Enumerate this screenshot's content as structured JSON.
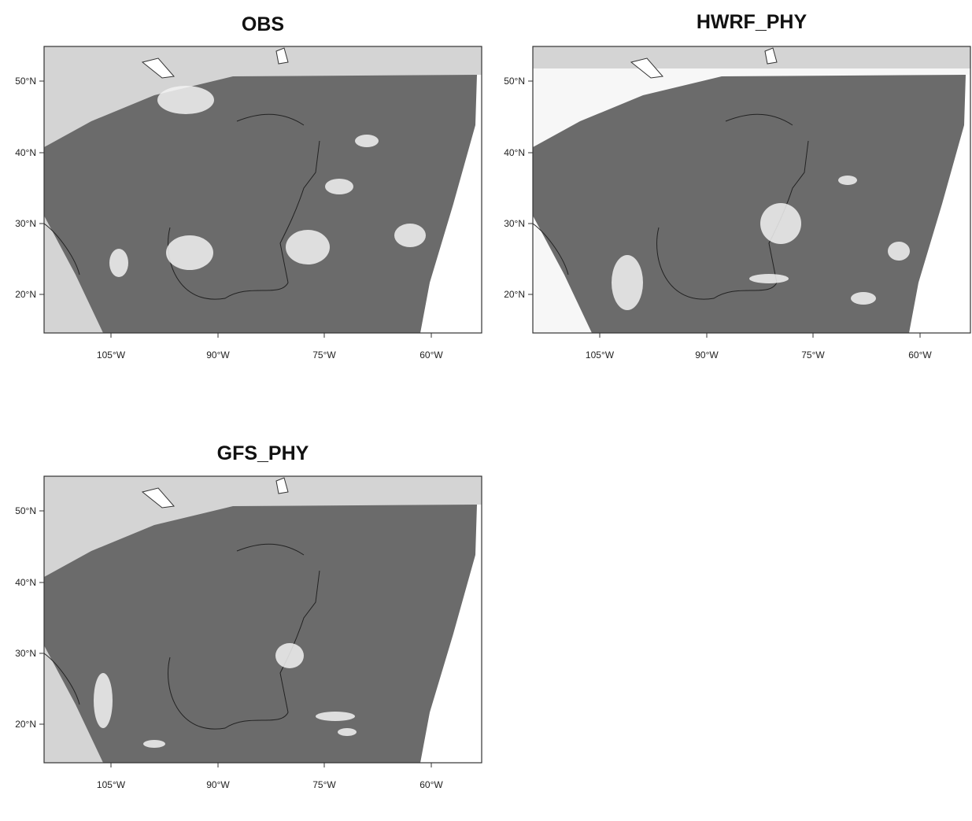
{
  "panels": [
    {
      "title": "OBS",
      "x_labels": [
        "105°W",
        "90°W",
        "75°W",
        "60°W"
      ],
      "y_labels": [
        "50°N",
        "40°N",
        "30°N",
        "20°N"
      ]
    },
    {
      "title": "HWRF_PHY",
      "x_labels": [
        "105°W",
        "90°W",
        "75°W",
        "60°W"
      ],
      "y_labels": [
        "50°N",
        "40°N",
        "30°N",
        "20°N"
      ]
    },
    {
      "title": "GFS_PHY",
      "x_labels": [
        "105°W",
        "90°W",
        "75°W",
        "60°W"
      ],
      "y_labels": [
        "50°N",
        "40°N",
        "30°N",
        "20°N"
      ]
    }
  ]
}
